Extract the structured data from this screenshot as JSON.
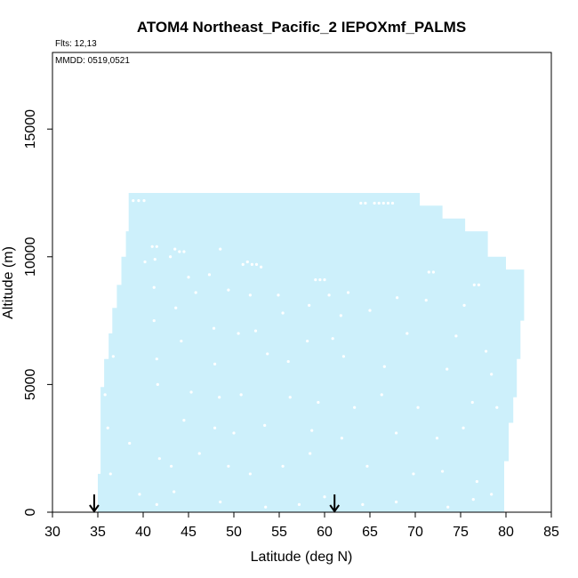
{
  "chart_data": {
    "type": "area",
    "title": "ATOM4 Northeast_Pacific_2 IEPOXmf_PALMS",
    "flights_note": "Flts: 12,13",
    "date_note": "MMDD: 0519,0521",
    "xlabel": "Latitude (deg N)",
    "ylabel": "Altitude (m)",
    "xlim": [
      30,
      85
    ],
    "ylim": [
      0,
      18000
    ],
    "x_ticks": [
      30,
      35,
      40,
      45,
      50,
      55,
      60,
      65,
      70,
      75,
      80,
      85
    ],
    "y_ticks": [
      0,
      5000,
      10000,
      15000
    ],
    "fill_color": "#cdf0fb",
    "grid": false,
    "legend": "none",
    "coverage_series": {
      "name": "",
      "lat_left_edge": [
        34.6,
        35.0,
        35.3,
        35.7,
        36.2,
        36.6,
        37.1,
        37.6,
        38.1,
        38.4
      ],
      "alt_left_edge": [
        0,
        1500,
        4900,
        6000,
        7000,
        8000,
        8900,
        10000,
        11000,
        12500
      ],
      "lat_top_right": [
        68.5,
        70.5,
        73.0,
        75.5,
        78.0,
        80.0,
        82.0
      ],
      "alt_top_right": [
        12500,
        12000,
        11500,
        11000,
        10000,
        9500,
        9500
      ],
      "lat_right_edge": [
        82.0,
        81.6,
        81.2,
        80.8,
        80.3,
        79.8,
        79.5
      ],
      "alt_right_edge": [
        9000,
        7500,
        6000,
        4500,
        3500,
        2000,
        0
      ]
    },
    "arrows": [
      {
        "lat": 34.6,
        "alt": 0
      },
      {
        "lat": 61.1,
        "alt": 0
      }
    ],
    "gap_points": [
      {
        "lat": 38.9,
        "alt": 12200
      },
      {
        "lat": 39.5,
        "alt": 12200
      },
      {
        "lat": 40.1,
        "alt": 12200
      },
      {
        "lat": 64.0,
        "alt": 12100
      },
      {
        "lat": 64.5,
        "alt": 12100
      },
      {
        "lat": 65.5,
        "alt": 12100
      },
      {
        "lat": 66.0,
        "alt": 12100
      },
      {
        "lat": 66.5,
        "alt": 12100
      },
      {
        "lat": 67.0,
        "alt": 12100
      },
      {
        "lat": 67.5,
        "alt": 12100
      },
      {
        "lat": 41.0,
        "alt": 10400
      },
      {
        "lat": 41.5,
        "alt": 10400
      },
      {
        "lat": 43.5,
        "alt": 10300
      },
      {
        "lat": 44.0,
        "alt": 10200
      },
      {
        "lat": 44.5,
        "alt": 10200
      },
      {
        "lat": 51.0,
        "alt": 9700
      },
      {
        "lat": 51.5,
        "alt": 9800
      },
      {
        "lat": 52.0,
        "alt": 9700
      },
      {
        "lat": 52.5,
        "alt": 9700
      },
      {
        "lat": 53.0,
        "alt": 9600
      },
      {
        "lat": 59.0,
        "alt": 9100
      },
      {
        "lat": 59.5,
        "alt": 9100
      },
      {
        "lat": 60.0,
        "alt": 9100
      },
      {
        "lat": 71.5,
        "alt": 9400
      },
      {
        "lat": 72.0,
        "alt": 9400
      },
      {
        "lat": 76.5,
        "alt": 8900
      },
      {
        "lat": 77.0,
        "alt": 8900
      },
      {
        "lat": 41.3,
        "alt": 9900
      },
      {
        "lat": 40.2,
        "alt": 9800
      },
      {
        "lat": 43.0,
        "alt": 10000
      },
      {
        "lat": 45.0,
        "alt": 9200
      },
      {
        "lat": 47.3,
        "alt": 9300
      },
      {
        "lat": 48.5,
        "alt": 10300
      },
      {
        "lat": 41.2,
        "alt": 8800
      },
      {
        "lat": 45.8,
        "alt": 8600
      },
      {
        "lat": 49.4,
        "alt": 8700
      },
      {
        "lat": 51.8,
        "alt": 8500
      },
      {
        "lat": 54.9,
        "alt": 8500
      },
      {
        "lat": 58.3,
        "alt": 8100
      },
      {
        "lat": 60.5,
        "alt": 8500
      },
      {
        "lat": 62.6,
        "alt": 8600
      },
      {
        "lat": 68.0,
        "alt": 8400
      },
      {
        "lat": 71.2,
        "alt": 8300
      },
      {
        "lat": 75.4,
        "alt": 8100
      },
      {
        "lat": 43.6,
        "alt": 8000
      },
      {
        "lat": 55.4,
        "alt": 7800
      },
      {
        "lat": 61.8,
        "alt": 7700
      },
      {
        "lat": 65.0,
        "alt": 7900
      },
      {
        "lat": 41.2,
        "alt": 7500
      },
      {
        "lat": 47.8,
        "alt": 7200
      },
      {
        "lat": 50.5,
        "alt": 7000
      },
      {
        "lat": 52.4,
        "alt": 7100
      },
      {
        "lat": 58.1,
        "alt": 6700
      },
      {
        "lat": 60.9,
        "alt": 6800
      },
      {
        "lat": 69.1,
        "alt": 7000
      },
      {
        "lat": 74.5,
        "alt": 6900
      },
      {
        "lat": 77.8,
        "alt": 6300
      },
      {
        "lat": 44.2,
        "alt": 6700
      },
      {
        "lat": 47.9,
        "alt": 5800
      },
      {
        "lat": 41.5,
        "alt": 6000
      },
      {
        "lat": 53.7,
        "alt": 6200
      },
      {
        "lat": 56.0,
        "alt": 5900
      },
      {
        "lat": 62.1,
        "alt": 6100
      },
      {
        "lat": 66.6,
        "alt": 5700
      },
      {
        "lat": 73.5,
        "alt": 5600
      },
      {
        "lat": 78.4,
        "alt": 5400
      },
      {
        "lat": 41.6,
        "alt": 5000
      },
      {
        "lat": 45.3,
        "alt": 4700
      },
      {
        "lat": 48.4,
        "alt": 4500
      },
      {
        "lat": 50.8,
        "alt": 4600
      },
      {
        "lat": 56.2,
        "alt": 4500
      },
      {
        "lat": 59.3,
        "alt": 4300
      },
      {
        "lat": 63.3,
        "alt": 4100
      },
      {
        "lat": 66.3,
        "alt": 4600
      },
      {
        "lat": 70.3,
        "alt": 4100
      },
      {
        "lat": 76.3,
        "alt": 4300
      },
      {
        "lat": 79.0,
        "alt": 4100
      },
      {
        "lat": 44.5,
        "alt": 3600
      },
      {
        "lat": 47.9,
        "alt": 3300
      },
      {
        "lat": 50.0,
        "alt": 3100
      },
      {
        "lat": 53.4,
        "alt": 3400
      },
      {
        "lat": 58.6,
        "alt": 3200
      },
      {
        "lat": 61.9,
        "alt": 2900
      },
      {
        "lat": 67.9,
        "alt": 3100
      },
      {
        "lat": 72.4,
        "alt": 2900
      },
      {
        "lat": 75.3,
        "alt": 3300
      },
      {
        "lat": 38.5,
        "alt": 2700
      },
      {
        "lat": 41.8,
        "alt": 2100
      },
      {
        "lat": 43.1,
        "alt": 1800
      },
      {
        "lat": 46.2,
        "alt": 2300
      },
      {
        "lat": 49.4,
        "alt": 1800
      },
      {
        "lat": 51.8,
        "alt": 1500
      },
      {
        "lat": 55.4,
        "alt": 1800
      },
      {
        "lat": 58.4,
        "alt": 2300
      },
      {
        "lat": 64.7,
        "alt": 1800
      },
      {
        "lat": 69.8,
        "alt": 1500
      },
      {
        "lat": 73.0,
        "alt": 1600
      },
      {
        "lat": 76.8,
        "alt": 1200
      },
      {
        "lat": 78.4,
        "alt": 700
      },
      {
        "lat": 39.6,
        "alt": 700
      },
      {
        "lat": 41.5,
        "alt": 300
      },
      {
        "lat": 43.4,
        "alt": 800
      },
      {
        "lat": 48.5,
        "alt": 400
      },
      {
        "lat": 53.5,
        "alt": 200
      },
      {
        "lat": 57.2,
        "alt": 300
      },
      {
        "lat": 60.0,
        "alt": 600
      },
      {
        "lat": 64.2,
        "alt": 300
      },
      {
        "lat": 67.9,
        "alt": 400
      },
      {
        "lat": 73.6,
        "alt": 200
      },
      {
        "lat": 76.4,
        "alt": 500
      },
      {
        "lat": 36.4,
        "alt": 1500
      },
      {
        "lat": 36.1,
        "alt": 3300
      },
      {
        "lat": 35.8,
        "alt": 4600
      },
      {
        "lat": 36.7,
        "alt": 6100
      }
    ]
  }
}
